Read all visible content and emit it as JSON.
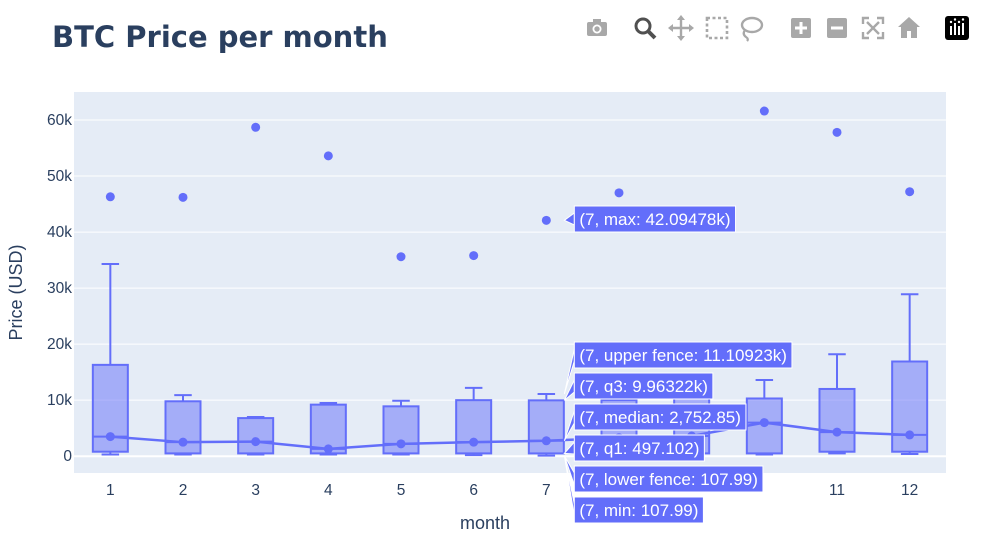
{
  "title": "BTC Price per month",
  "modebar": [
    {
      "name": "camera-icon",
      "label": "Download plot as a png"
    },
    {
      "name": "zoom-icon",
      "label": "Zoom"
    },
    {
      "name": "pan-icon",
      "label": "Pan"
    },
    {
      "name": "box-select-icon",
      "label": "Box Select"
    },
    {
      "name": "lasso-select-icon",
      "label": "Lasso Select"
    },
    {
      "name": "zoom-in-icon",
      "label": "Zoom in"
    },
    {
      "name": "zoom-out-icon",
      "label": "Zoom out"
    },
    {
      "name": "autoscale-icon",
      "label": "Autoscale"
    },
    {
      "name": "reset-axes-icon",
      "label": "Reset axes"
    },
    {
      "name": "plotly-logo-icon",
      "label": "Produced with Plotly"
    }
  ],
  "chart_data": {
    "type": "box",
    "xlabel": "month",
    "ylabel": "Price (USD)",
    "ylim": [
      -3000,
      65000
    ],
    "y_ticks": [
      0,
      10000,
      20000,
      30000,
      40000,
      50000,
      60000
    ],
    "y_tick_labels": [
      "0",
      "10k",
      "20k",
      "30k",
      "40k",
      "50k",
      "60k"
    ],
    "categories": [
      "1",
      "2",
      "3",
      "4",
      "5",
      "6",
      "7",
      "8",
      "9",
      "10",
      "11",
      "12"
    ],
    "x_tick_labels": [
      "1",
      "2",
      "3",
      "4",
      "5",
      "6",
      "7",
      "",
      "",
      "",
      "11",
      "12"
    ],
    "grid": true,
    "color": "#636efa",
    "boxes": [
      {
        "x": "1",
        "min": 300,
        "q1": 800,
        "median": 3500,
        "q3": 16300,
        "upper_fence": 34300,
        "outliers": [
          46300
        ],
        "mean": 3500
      },
      {
        "x": "2",
        "min": 300,
        "q1": 500,
        "median": 2500,
        "q3": 9800,
        "upper_fence": 10900,
        "outliers": [
          46200
        ],
        "mean": 2500
      },
      {
        "x": "3",
        "min": 300,
        "q1": 500,
        "median": 2600,
        "q3": 6800,
        "upper_fence": 7000,
        "outliers": [
          58700
        ],
        "mean": 2600
      },
      {
        "x": "4",
        "min": 300,
        "q1": 500,
        "median": 1300,
        "q3": 9200,
        "upper_fence": 9500,
        "outliers": [
          53600
        ],
        "mean": 1300
      },
      {
        "x": "5",
        "min": 300,
        "q1": 500,
        "median": 2200,
        "q3": 8900,
        "upper_fence": 9900,
        "outliers": [
          35600
        ],
        "mean": 2200
      },
      {
        "x": "6",
        "min": 200,
        "q1": 500,
        "median": 2500,
        "q3": 10000,
        "upper_fence": 12200,
        "outliers": [
          35800
        ],
        "mean": 2500
      },
      {
        "x": "7",
        "min": 107.99,
        "q1": 497.102,
        "median": 2752.85,
        "q3": 9963.22,
        "upper_fence": 11109.23,
        "outliers": [
          42094.78
        ],
        "mean": 2752.85
      },
      {
        "x": "8",
        "min": 300,
        "q1": 500,
        "median": 3300,
        "q3": 10000,
        "upper_fence": 11500,
        "outliers": [
          47000
        ],
        "mean": 3300
      },
      {
        "x": "9",
        "min": 300,
        "q1": 500,
        "median": 3600,
        "q3": 10300,
        "upper_fence": 11000,
        "outliers": [],
        "mean": 3600
      },
      {
        "x": "10",
        "min": 300,
        "q1": 500,
        "median": 6000,
        "q3": 10300,
        "upper_fence": 13600,
        "outliers": [
          61600
        ],
        "mean": 6000
      },
      {
        "x": "11",
        "min": 500,
        "q1": 800,
        "median": 4300,
        "q3": 12000,
        "upper_fence": 18200,
        "outliers": [
          57800
        ],
        "mean": 4300
      },
      {
        "x": "12",
        "min": 400,
        "q1": 800,
        "median": 3800,
        "q3": 16900,
        "upper_fence": 28900,
        "outliers": [
          47200
        ],
        "mean": 3800
      }
    ],
    "hover": {
      "x": "7",
      "labels": [
        {
          "key": "max",
          "text": "(7, max: 42.09478k)",
          "value": 42094.78
        },
        {
          "key": "upper_fence",
          "text": "(7, upper fence: 11.10923k)",
          "value": 11109.23
        },
        {
          "key": "q3",
          "text": "(7, q3: 9.96322k)",
          "value": 9963.22
        },
        {
          "key": "median",
          "text": "(7, median: 2,752.85)",
          "value": 2752.85
        },
        {
          "key": "q1",
          "text": "(7, q1: 497.102)",
          "value": 497.102
        },
        {
          "key": "lower_fence",
          "text": "(7, lower fence: 107.99)",
          "value": 107.99
        },
        {
          "key": "min",
          "text": "(7, min: 107.99)",
          "value": 107.99
        }
      ]
    }
  }
}
